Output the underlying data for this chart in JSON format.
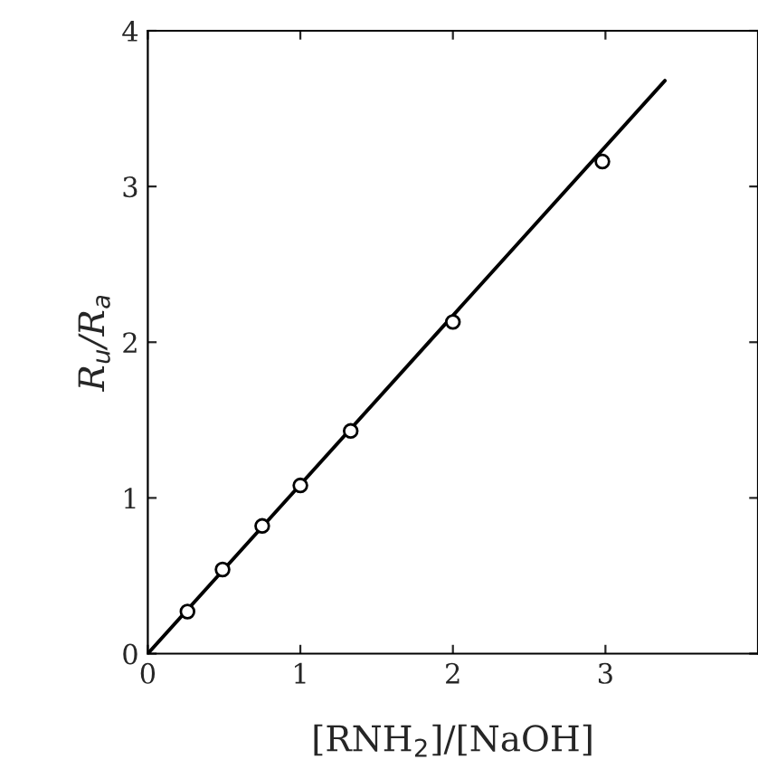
{
  "chart_data": {
    "type": "scatter",
    "xlabel": "[RNH$_{2}$]/[NaOH]",
    "ylabel": "R$_{u}$/R$_{a}$",
    "xlim": [
      0,
      4
    ],
    "ylim": [
      0,
      4
    ],
    "xticks": [
      0,
      1,
      2,
      3
    ],
    "yticks": [
      0,
      1,
      2,
      3,
      4
    ],
    "grid": false,
    "series": [
      {
        "marker": "circle",
        "color": "#000000",
        "x": [
          0.26,
          0.49,
          0.75,
          1.0,
          1.33,
          2.0,
          2.98
        ],
        "values": [
          0.27,
          0.54,
          0.82,
          1.08,
          1.43,
          2.13,
          3.16
        ]
      },
      {
        "type": "line",
        "marker": "none",
        "color": "#000000",
        "x": [
          0,
          3.39
        ],
        "values": [
          0,
          3.68
        ]
      }
    ]
  }
}
